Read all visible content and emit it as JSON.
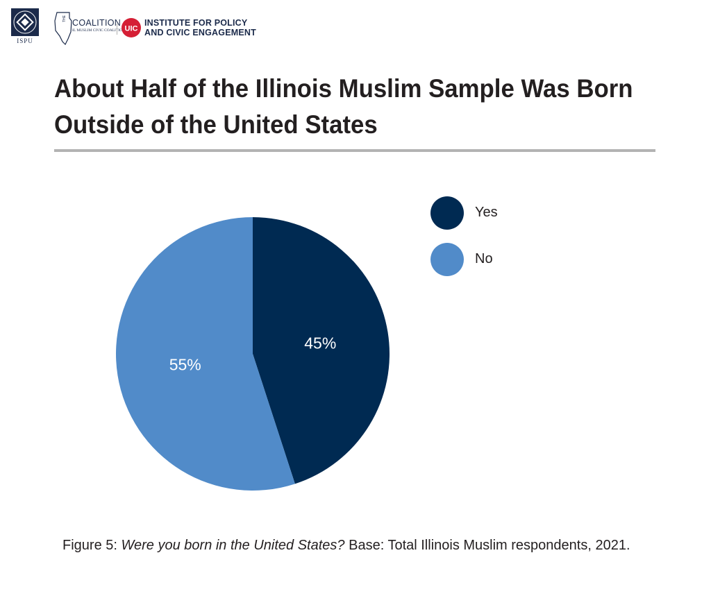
{
  "logos": {
    "ispu_text": "ISPU",
    "coalition_title": "COALITION",
    "coalition_prefix": "THE",
    "coalition_sub": "IL MUSLIM CIVIC COALITION",
    "uic_badge": "UIC",
    "uic_text": "INSTITUTE FOR POLICY\nAND CIVIC ENGAGEMENT"
  },
  "colors": {
    "yes": "#002a52",
    "no": "#518bc9",
    "rule": "#b3b3b3",
    "uic_red": "#d51f35"
  },
  "chart_data": {
    "type": "pie",
    "title": "About Half of the Illinois Muslim Sample Was Born Outside of the United States",
    "categories": [
      "Yes",
      "No"
    ],
    "values": [
      45,
      55
    ],
    "labels": [
      "45%",
      "55%"
    ],
    "legend_position": "right"
  },
  "caption": {
    "figure": "Figure 5:",
    "question": "Were you born in the United States?",
    "base": " Base: Total Illinois Muslim respondents, 2021."
  }
}
